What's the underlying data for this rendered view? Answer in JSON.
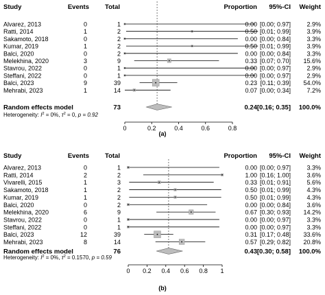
{
  "chart_data": [
    {
      "type": "forest",
      "panel_label": "(a)",
      "headers": {
        "study": "Study",
        "events": "Events",
        "total": "Total",
        "proportion": "Proportion",
        "ci": "95%-CI",
        "weight": "Weight"
      },
      "studies": [
        {
          "name": "Alvarez, 2013",
          "events": "0",
          "total": "1",
          "proportion": 0.0,
          "lower": 0.0,
          "upper": 0.97,
          "prop_text": "0.00",
          "ci_text": "[0.00; 0.97]",
          "weight_text": "2.9%",
          "weight": 2.9
        },
        {
          "name": "Ratti, 2014",
          "events": "1",
          "total": "2",
          "proportion": 0.5,
          "lower": 0.01,
          "upper": 0.99,
          "prop_text": "0.50",
          "ci_text": "[0.01; 0.99]",
          "weight_text": "3.9%",
          "weight": 3.9
        },
        {
          "name": "Sakamoto, 2018",
          "events": "0",
          "total": "2",
          "proportion": 0.0,
          "lower": 0.0,
          "upper": 0.84,
          "prop_text": "0.00",
          "ci_text": "[0.00; 0.84]",
          "weight_text": "3.3%",
          "weight": 3.3
        },
        {
          "name": "Kumar, 2019",
          "events": "1",
          "total": "2",
          "proportion": 0.5,
          "lower": 0.01,
          "upper": 0.99,
          "prop_text": "0.50",
          "ci_text": "[0.01; 0.99]",
          "weight_text": "3.9%",
          "weight": 3.9
        },
        {
          "name": "Balci, 2020",
          "events": "0",
          "total": "2",
          "proportion": 0.0,
          "lower": 0.0,
          "upper": 0.84,
          "prop_text": "0.00",
          "ci_text": "[0.00; 0.84]",
          "weight_text": "3.3%",
          "weight": 3.3
        },
        {
          "name": "Melekhina, 2020",
          "events": "3",
          "total": "9",
          "proportion": 0.33,
          "lower": 0.07,
          "upper": 0.7,
          "prop_text": "0.33",
          "ci_text": "[0.07; 0.70]",
          "weight_text": "15.6%",
          "weight": 15.6
        },
        {
          "name": "Stavrou, 2022",
          "events": "0",
          "total": "1",
          "proportion": 0.0,
          "lower": 0.0,
          "upper": 0.97,
          "prop_text": "0.00",
          "ci_text": "[0.00; 0.97]",
          "weight_text": "2.9%",
          "weight": 2.9
        },
        {
          "name": "Steffani, 2022",
          "events": "0",
          "total": "1",
          "proportion": 0.0,
          "lower": 0.0,
          "upper": 0.97,
          "prop_text": "0.00",
          "ci_text": "[0.00; 0.97]",
          "weight_text": "2.9%",
          "weight": 2.9
        },
        {
          "name": "Balci, 2023",
          "events": "9",
          "total": "39",
          "proportion": 0.23,
          "lower": 0.11,
          "upper": 0.39,
          "prop_text": "0.23",
          "ci_text": "[0.11; 0.39]",
          "weight_text": "54.0%",
          "weight": 54.0
        },
        {
          "name": "Mehrabi, 2023",
          "events": "1",
          "total": "14",
          "proportion": 0.07,
          "lower": 0.0,
          "upper": 0.34,
          "prop_text": "0.07",
          "ci_text": "[0.00; 0.34]",
          "weight_text": "7.2%",
          "weight": 7.2
        }
      ],
      "summary": {
        "name": "Random effects model",
        "total": "73",
        "proportion": 0.24,
        "lower": 0.16,
        "upper": 0.35,
        "prop_text": "0.24",
        "ci_text": "[0.16; 0.35]",
        "weight_text": "100.0%"
      },
      "heterogeneity": {
        "prefix": "Heterogeneity: ",
        "i2_sym": "I",
        "i2_val": " = 0%, ",
        "tau_sym": "τ",
        "tau_val": " = 0, ",
        "p_text": "p = 0.92"
      },
      "xlim": [
        0,
        0.8
      ],
      "ticks": [
        "0",
        "0.2",
        "0.4",
        "0.6",
        "0.8"
      ],
      "tick_values": [
        0,
        0.2,
        0.4,
        0.6,
        0.8
      ]
    },
    {
      "type": "forest",
      "panel_label": "(b)",
      "headers": {
        "study": "Study",
        "events": "Events",
        "total": "Total",
        "proportion": "Proportion",
        "ci": "95%-CI",
        "weight": "Weight"
      },
      "studies": [
        {
          "name": "Alvarez, 2013",
          "events": "0",
          "total": "1",
          "proportion": 0.0,
          "lower": 0.0,
          "upper": 0.97,
          "prop_text": "0.00",
          "ci_text": "[0.00; 0.97]",
          "weight_text": "3.3%",
          "weight": 3.3
        },
        {
          "name": "Ratti, 2014",
          "events": "2",
          "total": "2",
          "proportion": 1.0,
          "lower": 0.16,
          "upper": 1.0,
          "prop_text": "1.00",
          "ci_text": "[0.16; 1.00]",
          "weight_text": "3.6%",
          "weight": 3.6
        },
        {
          "name": "Vivarelli, 2015",
          "events": "1",
          "total": "3",
          "proportion": 0.33,
          "lower": 0.01,
          "upper": 0.91,
          "prop_text": "0.33",
          "ci_text": "[0.01; 0.91]",
          "weight_text": "5.6%",
          "weight": 5.6
        },
        {
          "name": "Sakamoto, 2018",
          "events": "1",
          "total": "2",
          "proportion": 0.5,
          "lower": 0.01,
          "upper": 0.99,
          "prop_text": "0.50",
          "ci_text": "[0.01; 0.99]",
          "weight_text": "4.3%",
          "weight": 4.3
        },
        {
          "name": "Kumar, 2019",
          "events": "1",
          "total": "2",
          "proportion": 0.5,
          "lower": 0.01,
          "upper": 0.99,
          "prop_text": "0.50",
          "ci_text": "[0.01; 0.99]",
          "weight_text": "4.3%",
          "weight": 4.3
        },
        {
          "name": "Balci, 2020",
          "events": "0",
          "total": "2",
          "proportion": 0.0,
          "lower": 0.0,
          "upper": 0.84,
          "prop_text": "0.00",
          "ci_text": "[0.00; 0.84]",
          "weight_text": "3.6%",
          "weight": 3.6
        },
        {
          "name": "Melekhina, 2020",
          "events": "6",
          "total": "9",
          "proportion": 0.67,
          "lower": 0.3,
          "upper": 0.93,
          "prop_text": "0.67",
          "ci_text": "[0.30; 0.93]",
          "weight_text": "14.2%",
          "weight": 14.2
        },
        {
          "name": "Stavrou, 2022",
          "events": "0",
          "total": "1",
          "proportion": 0.0,
          "lower": 0.0,
          "upper": 0.97,
          "prop_text": "0.00",
          "ci_text": "[0.00; 0.97]",
          "weight_text": "3.3%",
          "weight": 3.3
        },
        {
          "name": "Steffani, 2022",
          "events": "0",
          "total": "1",
          "proportion": 0.0,
          "lower": 0.0,
          "upper": 0.97,
          "prop_text": "0.00",
          "ci_text": "[0.00; 0.97]",
          "weight_text": "3.3%",
          "weight": 3.3
        },
        {
          "name": "Balci, 2023",
          "events": "12",
          "total": "39",
          "proportion": 0.31,
          "lower": 0.17,
          "upper": 0.48,
          "prop_text": "0.31",
          "ci_text": "[0.17; 0.48]",
          "weight_text": "33.6%",
          "weight": 33.6
        },
        {
          "name": "Mehrabi, 2023",
          "events": "8",
          "total": "14",
          "proportion": 0.57,
          "lower": 0.29,
          "upper": 0.82,
          "prop_text": "0.57",
          "ci_text": "[0.29; 0.82]",
          "weight_text": "20.8%",
          "weight": 20.8
        }
      ],
      "summary": {
        "name": "Random effects model",
        "total": "76",
        "proportion": 0.43,
        "lower": 0.3,
        "upper": 0.58,
        "prop_text": "0.43",
        "ci_text": "[0.30; 0.58]",
        "weight_text": "100.0%"
      },
      "heterogeneity": {
        "prefix": "Heterogeneity: ",
        "i2_sym": "I",
        "i2_val": " = 0%, ",
        "tau_sym": "τ",
        "tau_val": " = 0.1570, ",
        "p_text": "p = 0.59"
      },
      "xlim": [
        0,
        1
      ],
      "ticks": [
        "0",
        "0.2",
        "0.4",
        "0.6",
        "0.8",
        "1"
      ],
      "tick_values": [
        0,
        0.2,
        0.4,
        0.6,
        0.8,
        1
      ]
    }
  ]
}
